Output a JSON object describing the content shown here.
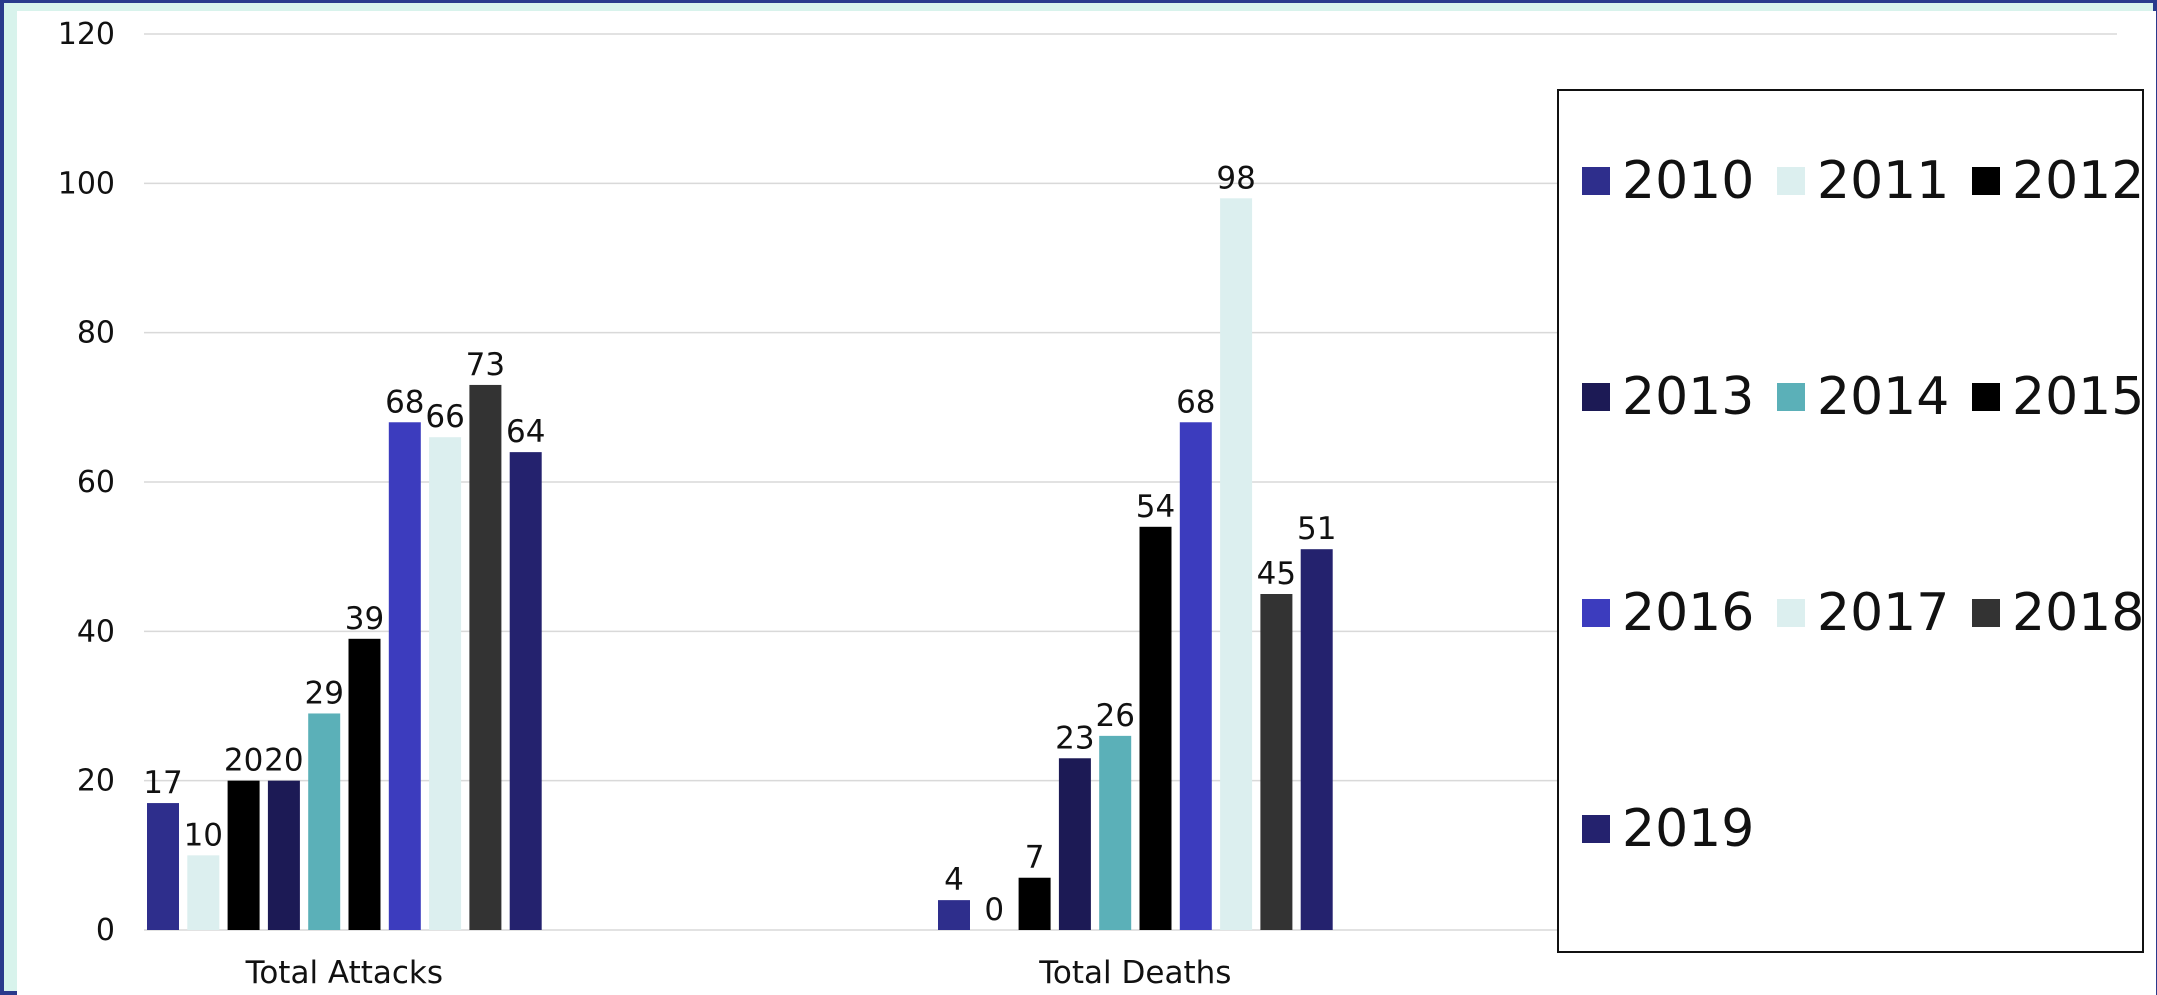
{
  "chart_data": {
    "type": "bar",
    "categories": [
      "Total Attacks",
      "Total Deaths"
    ],
    "series": [
      {
        "name": "2010",
        "color": "#2e2e8c",
        "values": [
          17,
          4
        ]
      },
      {
        "name": "2011",
        "color": "#dcefef",
        "values": [
          10,
          0
        ]
      },
      {
        "name": "2012",
        "color": "#000000",
        "values": [
          20,
          7
        ]
      },
      {
        "name": "2013",
        "color": "#1c1a55",
        "values": [
          20,
          23
        ]
      },
      {
        "name": "2014",
        "color": "#5bb0b8",
        "values": [
          29,
          26
        ]
      },
      {
        "name": "2015",
        "color": "#000000",
        "values": [
          39,
          54
        ]
      },
      {
        "name": "2016",
        "color": "#3c3cbe",
        "values": [
          68,
          68
        ]
      },
      {
        "name": "2017",
        "color": "#dcefef",
        "values": [
          66,
          98
        ]
      },
      {
        "name": "2018",
        "color": "#333333",
        "values": [
          73,
          45
        ]
      },
      {
        "name": "2019",
        "color": "#24226e",
        "values": [
          64,
          51
        ]
      }
    ],
    "ylim": [
      0,
      120
    ],
    "yticks": [
      "0",
      "20",
      "40",
      "60",
      "80",
      "100",
      "120"
    ],
    "grid": true,
    "legend_position": "right",
    "xlabel": "",
    "ylabel": ""
  }
}
